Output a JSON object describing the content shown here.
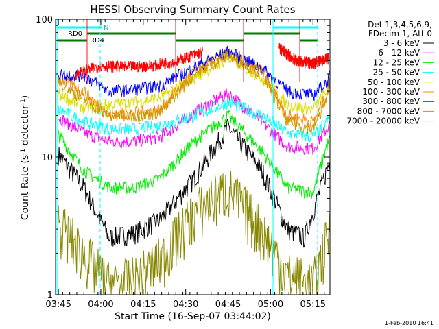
{
  "chart_data": {
    "type": "line",
    "title": "HESSI Observing Summary Count Rates",
    "xlabel": "Start Time (16-Sep-07 03:44:02)",
    "ylabel_main": "Count Rate (s",
    "ylabel_sup": "-1",
    "ylabel_end": " detector",
    "ylabel_close": ")",
    "y_scale": "log",
    "ylim": [
      1,
      100
    ],
    "xlim": [
      "03:44",
      "05:21"
    ],
    "x_ticks": [
      "03:45",
      "04:00",
      "04:15",
      "04:30",
      "04:45",
      "05:00",
      "05:15"
    ],
    "y_ticks": [
      "1",
      "10",
      "100"
    ],
    "legend_header": [
      "Det 1,3,4,5,6,9,",
      "FDecim 1, Att 0"
    ],
    "legend_position": "right",
    "date_stamp": "1-Feb-2010 16:41",
    "flag_labels": {
      "rd0": "RD0",
      "rd4": "RD4",
      "n": "N"
    },
    "series": [
      {
        "name": "3 - 6 keV",
        "color": "#000000",
        "values": [
          [
            3.75,
            10.5
          ],
          [
            3.9,
            6
          ],
          [
            4.05,
            2.6
          ],
          [
            4.2,
            2.8
          ],
          [
            4.35,
            3.5
          ],
          [
            4.55,
            7
          ],
          [
            4.75,
            16.5
          ],
          [
            4.95,
            8
          ],
          [
            5.1,
            3
          ],
          [
            5.2,
            2.6
          ],
          [
            5.33,
            8
          ],
          [
            5.36,
            10.5
          ]
        ]
      },
      {
        "name": "6 - 12 keV",
        "color": "#ff00ff",
        "values": [
          [
            3.75,
            19.5
          ],
          [
            3.9,
            15
          ],
          [
            4.05,
            13
          ],
          [
            4.2,
            13
          ],
          [
            4.35,
            14
          ],
          [
            4.55,
            21
          ],
          [
            4.75,
            29
          ],
          [
            4.95,
            18
          ],
          [
            5.1,
            12
          ],
          [
            5.25,
            11.5
          ],
          [
            5.33,
            16
          ],
          [
            5.36,
            18
          ]
        ]
      },
      {
        "name": "12 - 25 keV",
        "color": "#00ee00",
        "values": [
          [
            3.75,
            14.5
          ],
          [
            3.9,
            8
          ],
          [
            4.05,
            6
          ],
          [
            4.2,
            6
          ],
          [
            4.35,
            7
          ],
          [
            4.55,
            13
          ],
          [
            4.75,
            20
          ],
          [
            4.95,
            11
          ],
          [
            5.1,
            6
          ],
          [
            5.25,
            5.5
          ],
          [
            5.33,
            12
          ],
          [
            5.36,
            14
          ]
        ]
      },
      {
        "name": "25 - 50 keV",
        "color": "#00ffff",
        "values": [
          [
            3.75,
            22
          ],
          [
            3.9,
            18
          ],
          [
            4.05,
            16
          ],
          [
            4.2,
            16
          ],
          [
            4.35,
            17
          ],
          [
            4.55,
            20
          ],
          [
            4.75,
            25
          ],
          [
            4.95,
            20
          ],
          [
            5.1,
            15
          ],
          [
            5.25,
            14
          ],
          [
            5.33,
            18
          ],
          [
            5.36,
            20
          ]
        ]
      },
      {
        "name": "50 - 100 keV",
        "color": "#dddd00",
        "values": [
          [
            3.75,
            29
          ],
          [
            3.9,
            23
          ],
          [
            4.05,
            24
          ],
          [
            4.2,
            25
          ],
          [
            4.35,
            27
          ],
          [
            4.55,
            38
          ],
          [
            4.75,
            52
          ],
          [
            4.95,
            38
          ],
          [
            5.1,
            24
          ],
          [
            5.25,
            22
          ],
          [
            5.33,
            30
          ],
          [
            5.36,
            34
          ]
        ]
      },
      {
        "name": "100 - 300 keV",
        "color": "#ff8800",
        "values": [
          [
            3.75,
            37
          ],
          [
            3.9,
            30
          ],
          [
            4.05,
            20
          ],
          [
            4.2,
            21
          ],
          [
            4.35,
            22
          ],
          [
            4.55,
            42
          ],
          [
            4.75,
            56
          ],
          [
            4.95,
            42
          ],
          [
            5.1,
            20
          ],
          [
            5.25,
            18
          ],
          [
            5.33,
            28
          ],
          [
            5.36,
            38
          ]
        ]
      },
      {
        "name": "300 - 800 keV",
        "color": "#0000ff",
        "values": [
          [
            3.75,
            40
          ],
          [
            3.9,
            39
          ],
          [
            4.05,
            30
          ],
          [
            4.2,
            31
          ],
          [
            4.35,
            33
          ],
          [
            4.55,
            45
          ],
          [
            4.75,
            58
          ],
          [
            4.95,
            44
          ],
          [
            5.1,
            30
          ],
          [
            5.25,
            28
          ],
          [
            5.33,
            35
          ],
          [
            5.36,
            40
          ]
        ]
      },
      {
        "name": "800 - 7000 keV",
        "color": "#cc9900",
        "values": [
          [
            3.75,
            36
          ],
          [
            3.9,
            26
          ],
          [
            4.05,
            20
          ],
          [
            4.2,
            20
          ],
          [
            4.35,
            21
          ],
          [
            4.55,
            40
          ],
          [
            4.75,
            55
          ],
          [
            4.95,
            40
          ],
          [
            5.1,
            18
          ],
          [
            5.25,
            16
          ],
          [
            5.33,
            26
          ],
          [
            5.36,
            34
          ]
        ]
      },
      {
        "name": "7000 - 20000 keV",
        "color": "#888800",
        "values": [
          [
            3.75,
            3.4
          ],
          [
            3.9,
            2
          ],
          [
            4.05,
            1.2
          ],
          [
            4.2,
            1.3
          ],
          [
            4.35,
            1.8
          ],
          [
            4.55,
            4
          ],
          [
            4.75,
            6
          ],
          [
            4.95,
            3
          ],
          [
            5.1,
            1.4
          ],
          [
            5.25,
            1.2
          ],
          [
            5.33,
            2.5
          ],
          [
            5.36,
            3.5
          ]
        ]
      }
    ],
    "red_series_values": [
      [
        3.85,
        40
      ],
      [
        4.0,
        46
      ],
      [
        4.15,
        45
      ],
      [
        4.3,
        46
      ],
      [
        4.45,
        50
      ],
      [
        4.6,
        58
      ],
      [
        5.05,
        62
      ],
      [
        5.15,
        50
      ],
      [
        5.25,
        48
      ],
      [
        5.34,
        52
      ]
    ]
  }
}
